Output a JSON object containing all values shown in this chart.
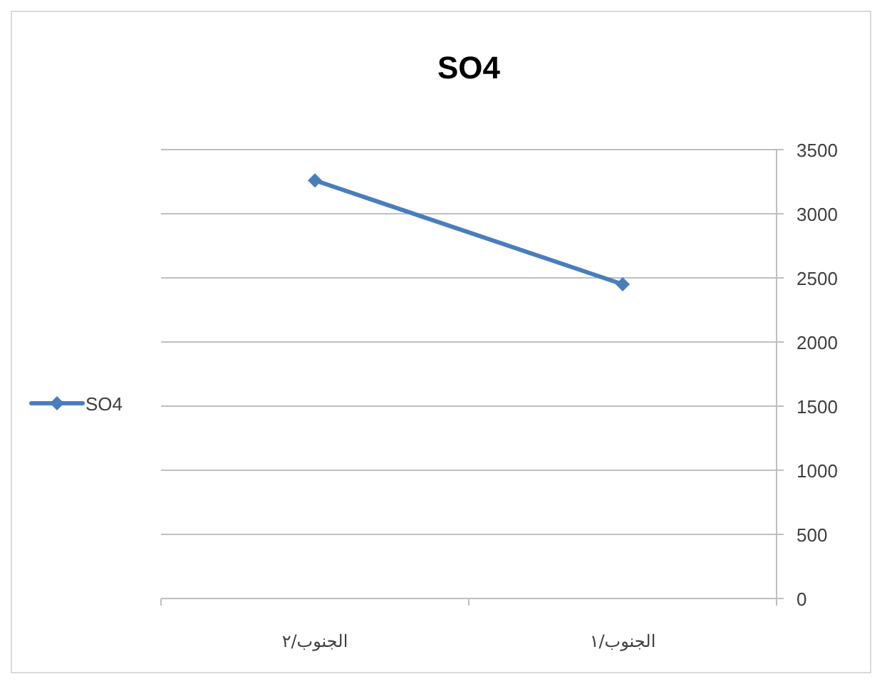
{
  "chart_data": {
    "type": "line",
    "title": "SO4",
    "categories": [
      "الجنوب/٢",
      "الجنوب/١"
    ],
    "series": [
      {
        "name": "SO4",
        "color": "#4a7ebb",
        "values": [
          3260,
          2450
        ]
      }
    ],
    "ylim": [
      0,
      3500
    ],
    "yticks": [
      0,
      500,
      1000,
      1500,
      2000,
      2500,
      3000,
      3500
    ],
    "grid": "y",
    "legend": "left",
    "marker": "diamond",
    "line_style": "solid"
  }
}
